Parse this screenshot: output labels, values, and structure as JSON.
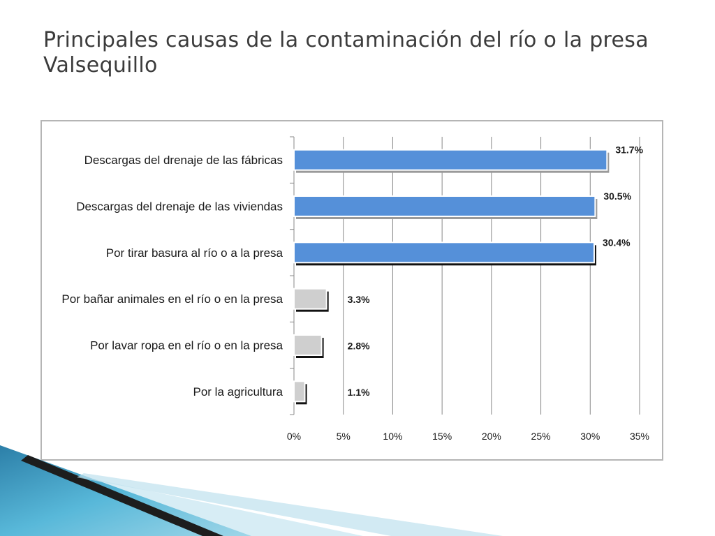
{
  "slide": {
    "title": "Principales causas de la contaminación del río o la presa Valsequillo"
  },
  "colors": {
    "highlight_bar": "#5590d9",
    "other_bar": "#cfcfcf",
    "gridline": "#888888",
    "deco_teal": "#3aa3c8",
    "deco_dark": "#1d1d1d"
  },
  "chart_data": {
    "type": "bar",
    "orientation": "horizontal",
    "categories": [
      "Descargas del drenaje de las fábricas",
      "Descargas del drenaje de las viviendas",
      "Por tirar basura al río o a la presa",
      "Por bañar animales en el río o en la presa",
      "Por lavar ropa en el río o en la presa",
      "Por la agricultura"
    ],
    "values": [
      31.7,
      30.5,
      30.4,
      3.3,
      2.8,
      1.1
    ],
    "value_labels": [
      "31.7%",
      "30.5%",
      "30.4%",
      "3.3%",
      "2.8%",
      "1.1%"
    ],
    "highlighted": [
      true,
      true,
      true,
      false,
      false,
      false
    ],
    "xlim": [
      0,
      35
    ],
    "xticks": [
      0,
      5,
      10,
      15,
      20,
      25,
      30,
      35
    ],
    "xtick_labels": [
      "0%",
      "5%",
      "10%",
      "15%",
      "20%",
      "25%",
      "30%",
      "35%"
    ],
    "grid": true,
    "legend": "none",
    "title": "",
    "xlabel": "",
    "ylabel": ""
  }
}
